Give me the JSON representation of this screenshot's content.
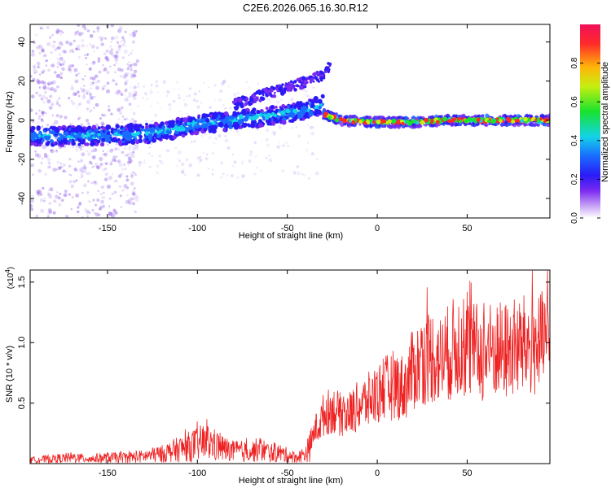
{
  "title": "C2E6.2026.065.16.30.R12",
  "colors": {
    "trace": "#ee2222",
    "frame": "#000000",
    "background": "#ffffff"
  },
  "chart_data": [
    {
      "type": "heatmap",
      "title": "C2E6.2026.065.16.30.R12",
      "xlabel": "Height of straight line (km)",
      "ylabel": "Frequency (Hz)",
      "xlim": [
        -193,
        96
      ],
      "ylim": [
        -50,
        49
      ],
      "xticks": [
        -150,
        -100,
        -50,
        0,
        50
      ],
      "xtick_labels": [
        "-150",
        "-100",
        "-50",
        "0",
        "50"
      ],
      "yticks": [
        -40,
        -20,
        0,
        20,
        40
      ],
      "ytick_labels": [
        "-40",
        "-20",
        "0",
        "20",
        "40"
      ],
      "ridge_main": {
        "x": [
          -193,
          -150,
          -120,
          -100,
          -80,
          -60,
          -40,
          -30
        ],
        "y": [
          -8,
          -8,
          -6,
          -2,
          0,
          2,
          5,
          8
        ]
      },
      "ridge_upper": {
        "x": [
          -80,
          -60,
          -45,
          -30,
          -26
        ],
        "y": [
          8,
          14,
          18,
          23,
          28
        ]
      },
      "ridge_right": {
        "x": [
          -30,
          -20,
          0,
          20,
          40,
          60,
          96
        ],
        "y": [
          3,
          0,
          -1,
          -1,
          0,
          0,
          0
        ]
      },
      "colorbar": {
        "label": "Normalized spectral amplitude",
        "range": [
          0,
          1
        ],
        "ticks": [
          0.0,
          0.2,
          0.4,
          0.6,
          0.8
        ],
        "tick_labels": [
          "0.0",
          "0.2",
          "0.4",
          "0.6",
          "0.8"
        ]
      }
    },
    {
      "type": "line",
      "xlabel": "Height of straight line (km)",
      "ylabel": "SNR (10 * v/v)",
      "scale_label_base": "(x10",
      "scale_label_exp": "4",
      "scale_label_end": ")",
      "xlim": [
        -193,
        96
      ],
      "ylim": [
        0,
        1.6
      ],
      "xticks": [
        -150,
        -100,
        -50,
        0,
        50
      ],
      "xtick_labels": [
        "-150",
        "-100",
        "-50",
        "0",
        "50"
      ],
      "yticks": [
        0.5,
        1.0,
        1.5
      ],
      "ytick_labels": [
        "0.5",
        "1.0",
        "1.5"
      ],
      "series": [
        {
          "name": "SNR",
          "x": [
            -193,
            -180,
            -170,
            -160,
            -150,
            -140,
            -130,
            -120,
            -110,
            -100,
            -95,
            -90,
            -85,
            -80,
            -75,
            -70,
            -65,
            -60,
            -55,
            -50,
            -45,
            -40,
            -37,
            -35,
            -32,
            -30,
            -25,
            -20,
            -15,
            -10,
            -5,
            0,
            5,
            10,
            15,
            18,
            20,
            25,
            30,
            35,
            40,
            45,
            50,
            55,
            60,
            65,
            70,
            75,
            80,
            85,
            90,
            96
          ],
          "y": [
            0.03,
            0.04,
            0.05,
            0.04,
            0.05,
            0.05,
            0.06,
            0.08,
            0.12,
            0.16,
            0.18,
            0.15,
            0.12,
            0.1,
            0.1,
            0.1,
            0.12,
            0.09,
            0.09,
            0.07,
            0.05,
            0.08,
            0.15,
            0.28,
            0.32,
            0.4,
            0.45,
            0.4,
            0.42,
            0.48,
            0.52,
            0.58,
            0.62,
            0.66,
            0.62,
            0.72,
            0.78,
            0.85,
            0.9,
            0.85,
            0.92,
            0.98,
            0.95,
            0.92,
            0.9,
            0.95,
            0.92,
            0.95,
            0.96,
            0.98,
            0.98,
            1.0
          ]
        }
      ]
    }
  ]
}
